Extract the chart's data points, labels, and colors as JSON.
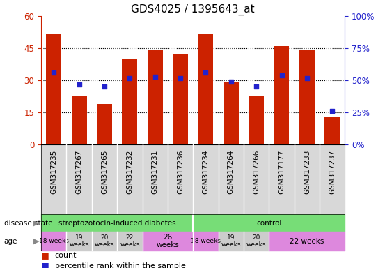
{
  "title": "GDS4025 / 1395643_at",
  "samples": [
    "GSM317235",
    "GSM317267",
    "GSM317265",
    "GSM317232",
    "GSM317231",
    "GSM317236",
    "GSM317234",
    "GSM317264",
    "GSM317266",
    "GSM317177",
    "GSM317233",
    "GSM317237"
  ],
  "counts": [
    52,
    23,
    19,
    40,
    44,
    42,
    52,
    29,
    23,
    46,
    44,
    13
  ],
  "percentiles": [
    56,
    47,
    45,
    52,
    53,
    52,
    56,
    49,
    45,
    54,
    52,
    26
  ],
  "ylim_left": [
    0,
    60
  ],
  "ylim_right": [
    0,
    100
  ],
  "yticks_left": [
    0,
    15,
    30,
    45,
    60
  ],
  "ytick_labels_left": [
    "0",
    "15",
    "30",
    "45",
    "60"
  ],
  "yticks_right": [
    0,
    25,
    50,
    75,
    100
  ],
  "ytick_labels_right": [
    "0%",
    "25%",
    "50%",
    "75%",
    "100%"
  ],
  "bar_color": "#cc2200",
  "dot_color": "#2222cc",
  "background_color": "#ffffff",
  "tick_label_color_left": "#cc2200",
  "tick_label_color_right": "#2222cc",
  "disease_groups": [
    {
      "label": "streptozotocin-induced diabetes",
      "start": 0,
      "end": 6,
      "color": "#77dd77"
    },
    {
      "label": "control",
      "start": 6,
      "end": 12,
      "color": "#77dd77"
    }
  ],
  "age_groups": [
    {
      "label": "18 weeks",
      "start": 0,
      "end": 1,
      "color": "#dd88dd"
    },
    {
      "label": "19\nweeks",
      "start": 1,
      "end": 2,
      "color": "#cccccc"
    },
    {
      "label": "20\nweeks",
      "start": 2,
      "end": 3,
      "color": "#cccccc"
    },
    {
      "label": "22\nweeks",
      "start": 3,
      "end": 4,
      "color": "#cccccc"
    },
    {
      "label": "26\nweeks",
      "start": 4,
      "end": 6,
      "color": "#dd88dd"
    },
    {
      "label": "18 weeks",
      "start": 6,
      "end": 7,
      "color": "#dd88dd"
    },
    {
      "label": "19\nweeks",
      "start": 7,
      "end": 8,
      "color": "#cccccc"
    },
    {
      "label": "20\nweeks",
      "start": 8,
      "end": 9,
      "color": "#cccccc"
    },
    {
      "label": "22 weeks",
      "start": 9,
      "end": 12,
      "color": "#dd88dd"
    }
  ],
  "legend_count_label": "count",
  "legend_pct_label": "percentile rank within the sample",
  "figsize": [
    5.63,
    3.84
  ],
  "dpi": 100
}
